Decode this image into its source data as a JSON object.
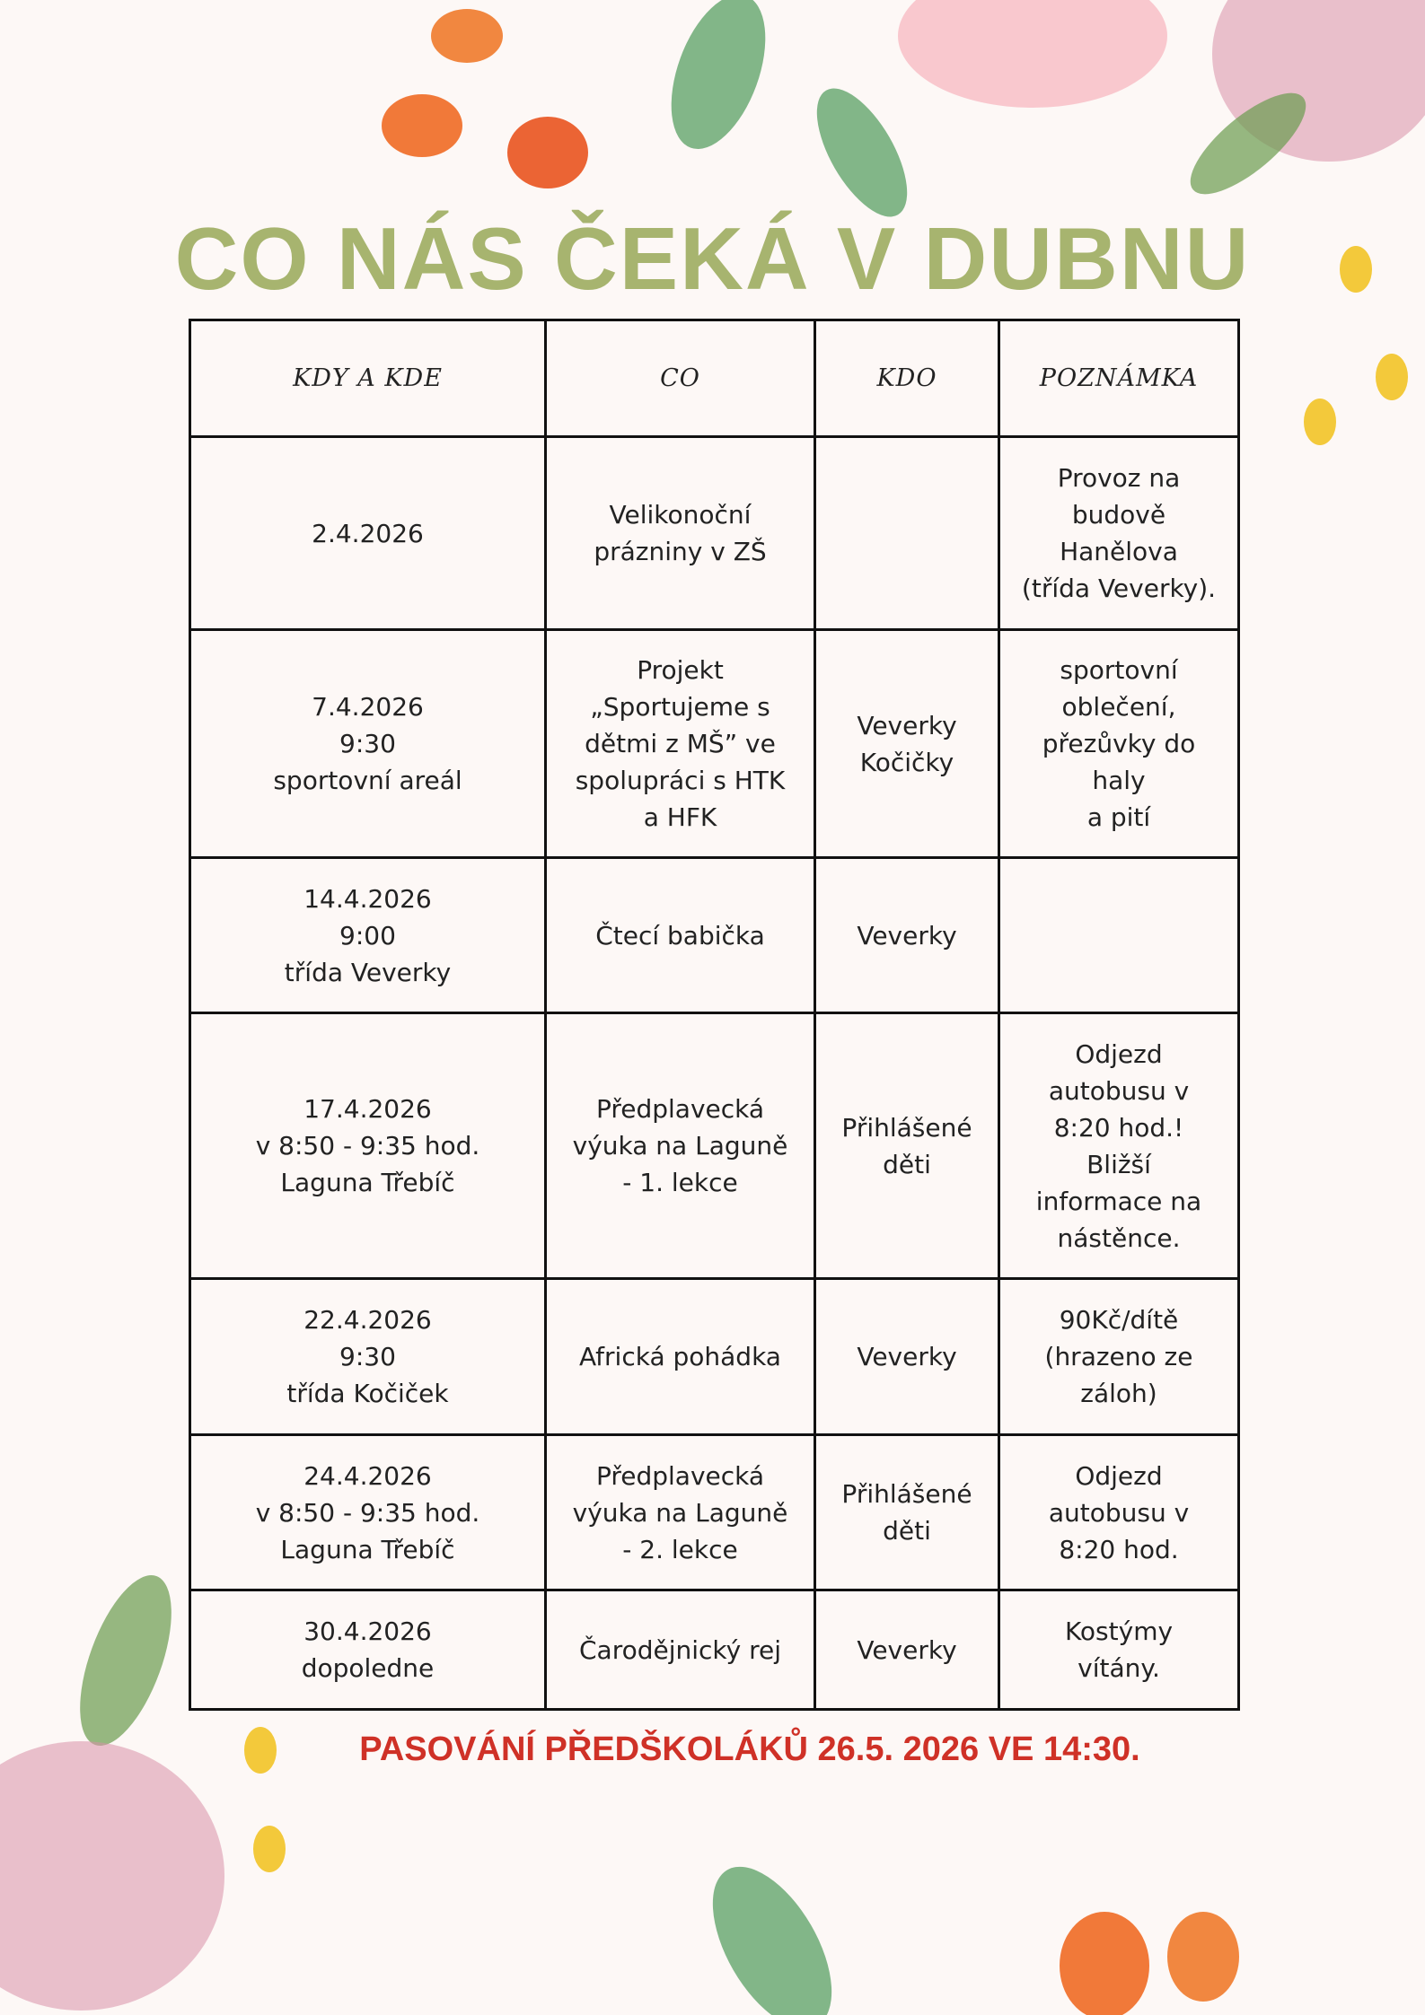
{
  "header": {
    "title": "CO NÁS ČEKÁ V DUBNU"
  },
  "table": {
    "columns": [
      "KDY A KDE",
      "CO",
      "KDO",
      "POZNÁMKA"
    ],
    "rows": [
      [
        "2.4.2026",
        "Velikonoční\nprázniny v ZŠ",
        null,
        "Provoz na\nbudově\nHanělova\n(třída Veverky)."
      ],
      [
        "7.4.2026\n9:30\nsportovní areál",
        "Projekt\n„Sportujeme s\ndětmi z MŠ” ve\nspolupráci s HTK\na HFK",
        "Veverky\nKočičky",
        "sportovní\noblečení,\npřezůvky do\nhaly\na pití"
      ],
      [
        "14.4.2026\n9:00\ntřída Veverky",
        "Čtecí babička",
        "Veverky",
        null
      ],
      [
        "17.4.2026\nv 8:50 - 9:35 hod.\nLaguna Třebíč",
        "Předplavecká\nvýuka na Laguně\n- 1. lekce",
        "Přihlášené\nděti",
        "Odjezd\nautobusu v\n8:20 hod.!\nBližší\ninformace na\nnástěnce."
      ],
      [
        "22.4.2026\n9:30\ntřída Kočiček",
        "Africká pohádka",
        "Veverky",
        "90Kč/dítě\n(hrazeno ze\nzáloh)"
      ],
      [
        "24.4.2026\nv 8:50 - 9:35 hod.\nLaguna Třebíč",
        "Předplavecká\nvýuka na Laguně\n- 2. lekce",
        "Přihlášené\nděti",
        "Odjezd\nautobusu v\n8:20 hod."
      ],
      [
        "30.4.2026\ndopoledne",
        "Čarodějnický rej",
        "Veverky",
        "Kostýmy\nvítány."
      ]
    ]
  },
  "footer": {
    "note": "PASOVÁNÍ PŘEDŠKOLÁKŮ 26.5. 2026 VE 14:30."
  }
}
